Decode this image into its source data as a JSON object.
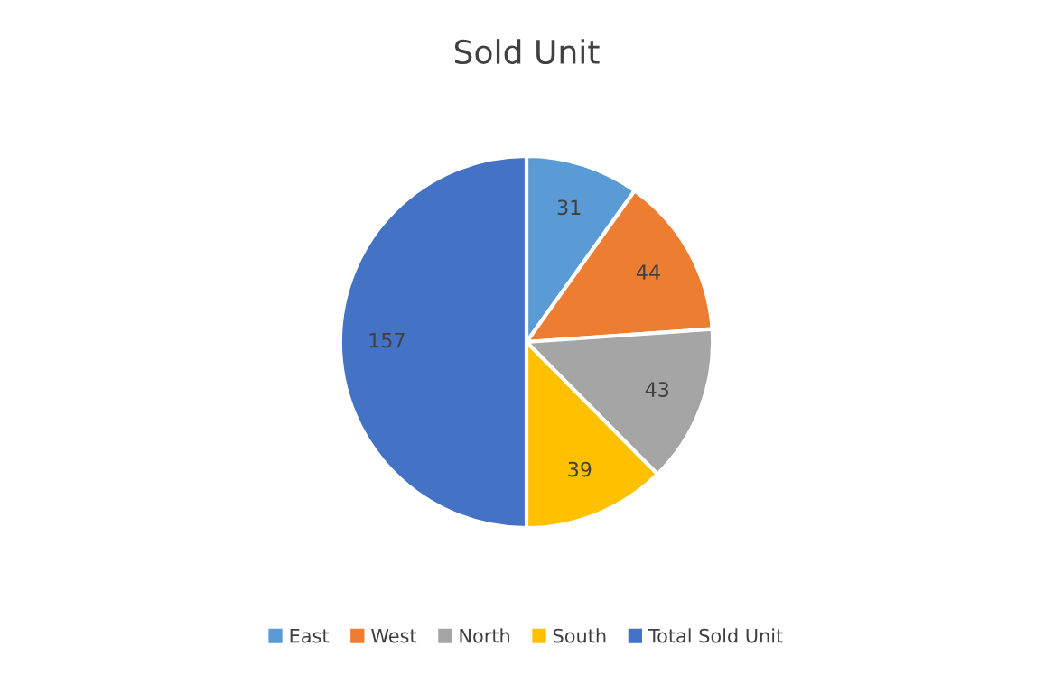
{
  "chart_data": {
    "type": "pie",
    "title": "Sold Unit",
    "categories": [
      "East",
      "West",
      "North",
      "South",
      "Total Sold Unit"
    ],
    "values": [
      31,
      44,
      43,
      39,
      157
    ],
    "colors": [
      "#5b9bd5",
      "#ed7d31",
      "#a5a5a5",
      "#ffc000",
      "#4472c4"
    ],
    "data_labels": true,
    "legend": "bottom"
  }
}
